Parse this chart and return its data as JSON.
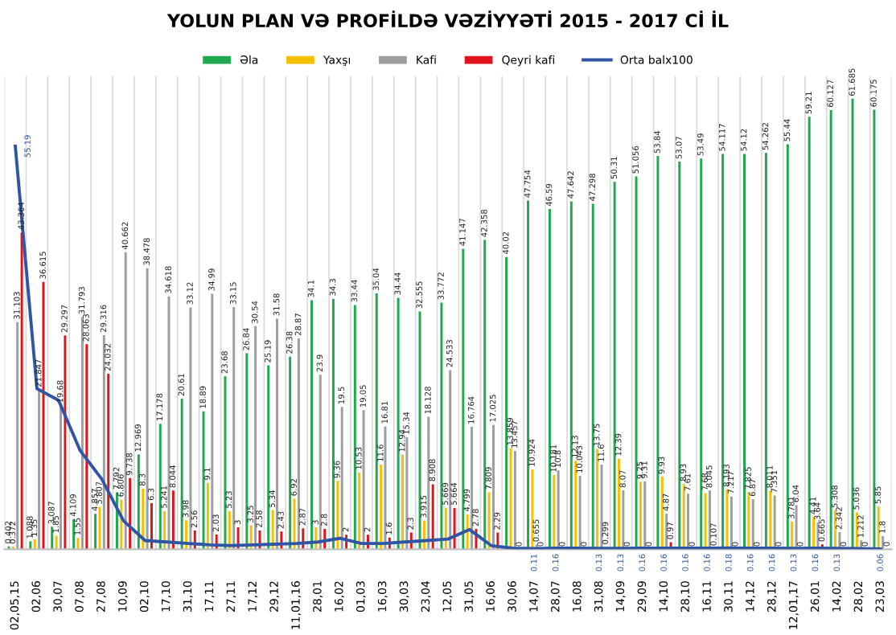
{
  "chart_data": {
    "type": "bar",
    "title": "YOLUN PLAN VƏ PROFİLDƏ VƏZİYYƏTİ 2015 - 2017 Cİ İL",
    "categories": [
      "02,05,15",
      "02,06",
      "30,07",
      "07,08",
      "27,08",
      "10,09",
      "02,10",
      "17,10",
      "31,10",
      "17,11",
      "27,11",
      "17,12",
      "29,12",
      "11,01,16",
      "28,01",
      "16,02",
      "01,03",
      "16,03",
      "30,03",
      "23,04",
      "12,05",
      "31,05",
      "16,06",
      "30,06",
      "14,07",
      "28,07",
      "16,08",
      "31,08",
      "14,09",
      "29,09",
      "14,10",
      "28,10",
      "16,11",
      "30,11",
      "14,12",
      "28,12",
      "12,01,17",
      "26,01",
      "14,02",
      "28,02",
      "23,03"
    ],
    "series": [
      {
        "name": "Əla",
        "color": "#1fa84f",
        "values": [
          0.402,
          1.088,
          3.087,
          4.109,
          4.857,
          7.792,
          12.969,
          17.178,
          20.61,
          18.89,
          23.68,
          26.84,
          25.19,
          26.38,
          34.1,
          34.3,
          33.44,
          35.04,
          34.44,
          32.555,
          33.772,
          41.147,
          42.358,
          40.02,
          47.754,
          46.59,
          47.642,
          47.298,
          50.31,
          51.056,
          53.84,
          53.07,
          53.49,
          54.117,
          54.12,
          54.262,
          55.44,
          59.21,
          60.127,
          61.685,
          60.175
        ]
      },
      {
        "name": "Yaxşı",
        "color": "#f5c000",
        "values": [
          0.372,
          1.35,
          1.85,
          1.55,
          5.807,
          6.806,
          8.3,
          5.241,
          3.98,
          9.1,
          5.23,
          3.25,
          5.34,
          6.92,
          3,
          9.36,
          10.53,
          11.6,
          12.94,
          3.915,
          5.669,
          4.799,
          7.809,
          13.859,
          10.924,
          10.181,
          12.13,
          13.75,
          12.39,
          9.25,
          9.93,
          8.93,
          7.68,
          8.193,
          7.825,
          8.011,
          3.781,
          4.41,
          5.308,
          5.036,
          5.85
        ]
      },
      {
        "name": "Kafi",
        "color": "#9e9e9e",
        "values": [
          31.103,
          21.847,
          19.68,
          31.793,
          29.316,
          40.662,
          38.478,
          34.618,
          33.12,
          34.99,
          33.15,
          30.54,
          31.58,
          28.87,
          23.9,
          19.5,
          19.05,
          16.81,
          15.34,
          18.128,
          24.533,
          16.764,
          17.025,
          13.457,
          0.655,
          10.8,
          10.043,
          11.6,
          8.07,
          9.31,
          4.87,
          7.61,
          8.045,
          7.217,
          6.87,
          7.351,
          6.04,
          3.64,
          2.342,
          1.212,
          1.8
        ]
      },
      {
        "name": "Qeyri kafi",
        "color": "#e2141b",
        "values": [
          43.364,
          36.615,
          29.297,
          28.063,
          24.032,
          9.738,
          6.3,
          8.044,
          2.56,
          2.03,
          3,
          2.58,
          2.43,
          2.87,
          2.8,
          2,
          2,
          1.6,
          2.3,
          8.908,
          5.664,
          2.78,
          2.29,
          0,
          0,
          0,
          0,
          0.299,
          0,
          0,
          0.97,
          0,
          0.107,
          0,
          0,
          0,
          0,
          0.665,
          0,
          0,
          0
        ]
      },
      {
        "name": "Orta balx100",
        "type": "line",
        "color": "#2f55a4",
        "values": [
          55.19,
          22,
          20.4,
          13.5,
          9.6,
          3.9,
          1.2,
          1.0,
          0.8,
          0.6,
          0.5,
          0.6,
          0.7,
          0.8,
          1.0,
          1.5,
          0.8,
          0.8,
          1.0,
          1.2,
          1.4,
          2.7,
          0.5,
          0.15,
          0.11,
          0.16,
          0.15,
          0.13,
          0.13,
          0.16,
          0.16,
          0.16,
          0.16,
          0.18,
          0.16,
          0.16,
          0.13,
          0.16,
          0.13,
          0.1,
          0.06
        ],
        "value_labels": [
          "55.19",
          null,
          null,
          null,
          null,
          null,
          null,
          null,
          null,
          null,
          null,
          null,
          null,
          null,
          null,
          null,
          null,
          null,
          null,
          null,
          null,
          null,
          null,
          null,
          "0.11",
          "0.16",
          null,
          "0.13",
          "0.13",
          "0.16",
          "0.16",
          "0.16",
          "0.16",
          "0.18",
          "0.16",
          "0.16",
          "0.13",
          "0.16",
          "0.13",
          null,
          "0.06"
        ]
      }
    ],
    "data_labels": true,
    "grid": "x",
    "legend": "top",
    "relative": false
  }
}
